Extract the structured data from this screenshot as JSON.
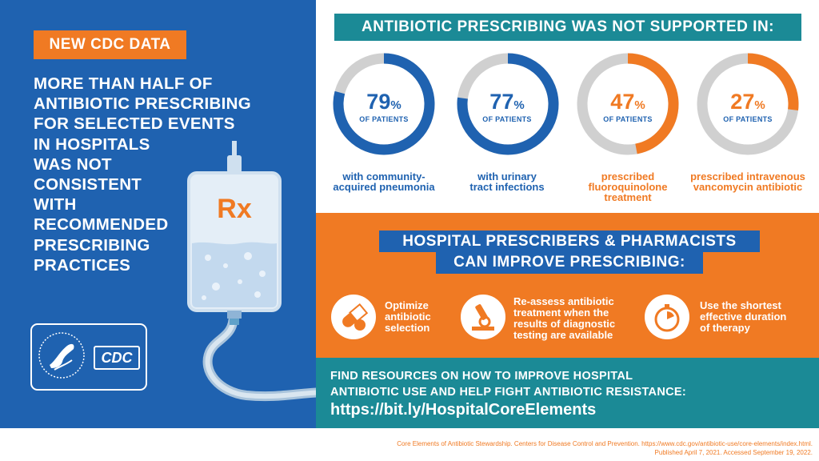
{
  "left_panel": {
    "badge": "NEW CDC DATA",
    "headline_lines": [
      "MORE THAN HALF OF",
      "ANTIBIOTIC PRESCRIBING",
      "FOR SELECTED EVENTS",
      "IN HOSPITALS",
      "WAS NOT",
      "CONSISTENT",
      "WITH",
      "RECOMMENDED",
      "PRESCRIBING",
      "PRACTICES"
    ],
    "iv_bag_label": "Rx",
    "logo_text": "CDC",
    "hhs_seal_text": "DEPARTMENT OF HEALTH & HUMAN SERVICES USA"
  },
  "stats": {
    "title": "ANTIBIOTIC PRESCRIBING WAS NOT SUPPORTED IN:",
    "items": [
      {
        "value": "79",
        "unit": "%",
        "sub": "OF PATIENTS",
        "label_lines": [
          "with community-",
          "acquired pneumonia"
        ],
        "percent": 79,
        "color": "#1f62b0"
      },
      {
        "value": "77",
        "unit": "%",
        "sub": "OF PATIENTS",
        "label_lines": [
          "with urinary",
          "tract infections"
        ],
        "percent": 77,
        "color": "#1f62b0"
      },
      {
        "value": "47",
        "unit": "%",
        "sub": "OF PATIENTS",
        "label_lines": [
          "prescribed",
          "fluoroquinolone",
          "treatment"
        ],
        "percent": 47,
        "color": "#f07a23"
      },
      {
        "value": "27",
        "unit": "%",
        "sub": "OF PATIENTS",
        "label_lines": [
          "prescribed intravenous",
          "vancomycin antibiotic"
        ],
        "percent": 27,
        "color": "#f07a23"
      }
    ]
  },
  "improve": {
    "title_line1": "HOSPITAL PRESCRIBERS & PHARMACISTS",
    "title_line2": "CAN IMPROVE PRESCRIBING:",
    "actions": [
      {
        "icon": "pill-icon",
        "lines": [
          "Optimize",
          "antibiotic",
          "selection"
        ]
      },
      {
        "icon": "microscope-icon",
        "lines": [
          "Re-assess antibiotic",
          "treatment when the",
          "results of diagnostic",
          "testing are available"
        ]
      },
      {
        "icon": "stopwatch-icon",
        "lines": [
          "Use the shortest",
          "effective duration",
          "of therapy"
        ]
      }
    ]
  },
  "resources": {
    "line1": "FIND RESOURCES ON HOW TO IMPROVE HOSPITAL",
    "line2": "ANTIBIOTIC USE AND HELP FIGHT ANTIBIOTIC RESISTANCE:",
    "url": "https://bit.ly/HospitalCoreElements"
  },
  "citation": {
    "line1": "Core Elements of Antibiotic Stewardship. Centers for Disease Control and Prevention. https://www.cdc.gov/antibiotic-use/core-elements/index.html.",
    "line2": "Published April 7, 2021. Accessed September 19, 2022."
  },
  "colors": {
    "blue": "#1f62b0",
    "orange": "#f07a23",
    "teal": "#1b8a96",
    "ring_track": "#d0d0d0"
  }
}
